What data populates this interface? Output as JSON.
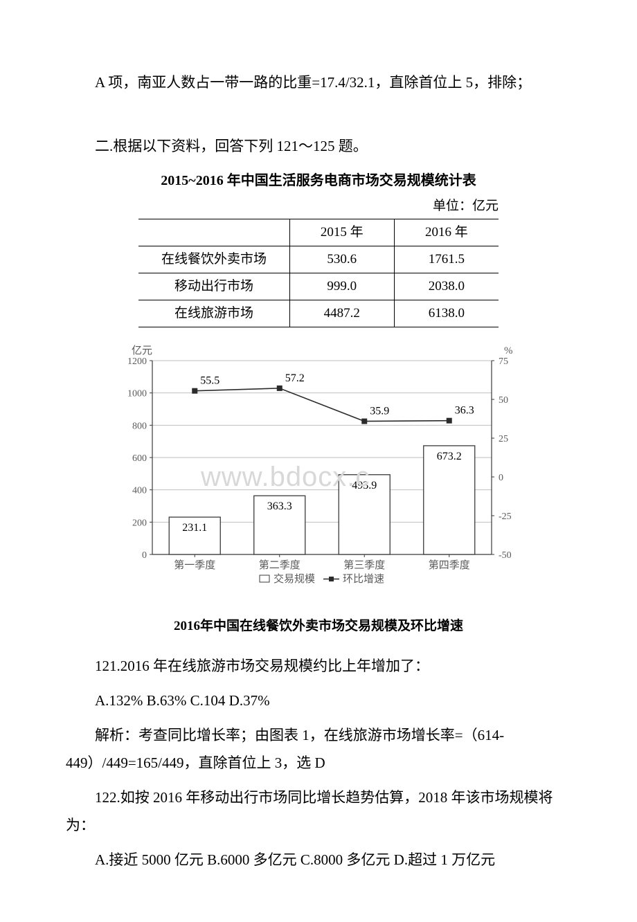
{
  "para_a": "A 项，南亚人数占一带一路的比重=17.4/32.1，直除首位上 5，排除；",
  "section2_intro": "二.根据以下资料，回答下列 121～125 题。",
  "table": {
    "title": "2015~2016 年中国生活服务电商市场交易规模统计表",
    "unit": "单位：亿元",
    "headers": [
      "",
      "2015 年",
      "2016 年"
    ],
    "rows": [
      [
        "在线餐饮外卖市场",
        "530.6",
        "1761.5"
      ],
      [
        "移动出行市场",
        "999.0",
        "2038.0"
      ],
      [
        "在线旅游市场",
        "4487.2",
        "6138.0"
      ]
    ]
  },
  "chart": {
    "y_left_label": "亿元",
    "y_right_label": "%",
    "y_left_ticks": [
      "1200",
      "1000",
      "800",
      "600",
      "400",
      "200",
      "0"
    ],
    "y_right_ticks": [
      "75",
      "50",
      "25",
      "0",
      "-25",
      "-50"
    ],
    "x_labels": [
      "第一季度",
      "第二季度",
      "第三季度",
      "第四季度"
    ],
    "bars": [
      {
        "label": "231.1",
        "value": 231.1
      },
      {
        "label": "363.3",
        "value": 363.3
      },
      {
        "label": "493.9",
        "value": 493.9
      },
      {
        "label": "673.2",
        "value": 673.2
      }
    ],
    "line": [
      {
        "label": "55.5",
        "value": 55.5
      },
      {
        "label": "57.2",
        "value": 57.2
      },
      {
        "label": "35.9",
        "value": 35.9
      },
      {
        "label": "36.3",
        "value": 36.3
      }
    ],
    "legend": [
      "交易规模",
      "环比增速"
    ],
    "caption": "2016年中国在线餐饮外卖市场交易规模及环比增速",
    "colors": {
      "bar_stroke": "#3a3a3a",
      "bar_fill": "#ffffff",
      "line_stroke": "#2b2b2b",
      "marker_fill": "#2b2b2b",
      "grid": "#bfbfbf",
      "axis": "#3a3a3a",
      "text": "#5a5a5a"
    }
  },
  "watermark": "www.bdocx.c",
  "q121": "121.2016 年在线旅游市场交易规模约比上年增加了：",
  "q121_opts": "A.132% B.63% C.104 D.37%",
  "q121_ans": "解析：考查同比增长率；由图表 1，在线旅游市场增长率=（614-449）/449=165/449，直除首位上 3，选 D",
  "q122": "122.如按 2016 年移动出行市场同比增长趋势估算，2018 年该市场规模将为：",
  "q122_opts": "A.接近 5000 亿元 B.6000 多亿元 C.8000 多亿元 D.超过 1 万亿元"
}
